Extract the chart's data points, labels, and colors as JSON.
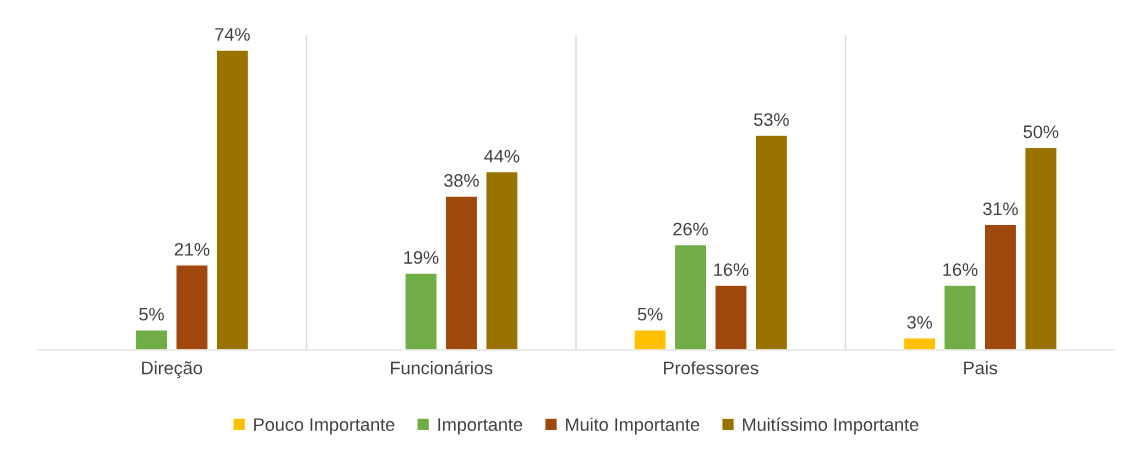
{
  "chart_data": {
    "type": "bar",
    "categories": [
      "Direção",
      "Funcionários",
      "Professores",
      "Pais"
    ],
    "series": [
      {
        "name": "Pouco Importante",
        "color": "#ffc000",
        "values": [
          null,
          null,
          5,
          3
        ],
        "value_labels": [
          null,
          null,
          "5%",
          "3%"
        ]
      },
      {
        "name": "Importante",
        "color": "#70ad47",
        "values": [
          5,
          19,
          26,
          16
        ],
        "value_labels": [
          "5%",
          "19%",
          "26%",
          "16%"
        ]
      },
      {
        "name": "Muito Importante",
        "color": "#9e480e",
        "values": [
          21,
          38,
          16,
          31
        ],
        "value_labels": [
          "21%",
          "38%",
          "16%",
          "31%"
        ]
      },
      {
        "name": "Muitíssimo Importante",
        "color": "#997300",
        "values": [
          74,
          44,
          53,
          50
        ],
        "value_labels": [
          "74%",
          "44%",
          "53%",
          "50%"
        ]
      }
    ],
    "grid": "x",
    "legend": "bottom",
    "tick_labels": "x"
  }
}
